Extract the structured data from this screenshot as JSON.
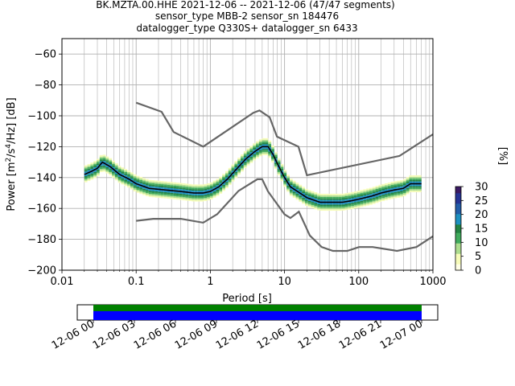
{
  "header": {
    "lines": [
      "BK.MZTA.00.HHE   2021-12-06 -- 2021-12-06  (47/47 segments)",
      "sensor_type MBB-2 sensor_sn 184476",
      "datalogger_type Q330S+ datalogger_sn 6433"
    ]
  },
  "chart_data": {
    "type": "heatmap",
    "xlabel": "Period [s]",
    "ylabel": "Power [m^2/s^4/Hz] [dB]",
    "x_scale": "log",
    "xlim": [
      0.01,
      1000
    ],
    "ylim": [
      -200,
      -50
    ],
    "x_ticks": [
      0.01,
      0.1,
      1,
      10,
      100,
      1000
    ],
    "x_tick_labels": [
      "0.01",
      "0.1",
      "1",
      "10",
      "100",
      "1000"
    ],
    "y_ticks": [
      -200,
      -180,
      -160,
      -140,
      -120,
      -100,
      -80,
      -60
    ],
    "y_tick_labels": [
      "−200",
      "−180",
      "−160",
      "−140",
      "−120",
      "−100",
      "−80",
      "−60"
    ],
    "grid": true,
    "colorbar": {
      "label": "[%]",
      "min": 0,
      "max": 30,
      "ticks": [
        0,
        5,
        10,
        15,
        20,
        25,
        30
      ],
      "colormap": [
        "#ffffe5",
        "#f7fcb9",
        "#addd8e",
        "#41ab5d",
        "#238443",
        "#1d91c0",
        "#225ea8",
        "#253494",
        "#3b1a63"
      ]
    },
    "noise_model_high": {
      "period": [
        0.1,
        0.22,
        0.32,
        0.8,
        3.8,
        4.6,
        6.3,
        7.9,
        15.4,
        20,
        354.8,
        1000
      ],
      "power": [
        -91.5,
        -97.4,
        -110.5,
        -120,
        -98,
        -96.5,
        -101,
        -113.5,
        -120,
        -138.5,
        -126,
        -112
      ]
    },
    "noise_model_low": {
      "period": [
        0.1,
        0.17,
        0.4,
        0.8,
        1.24,
        2.4,
        4.3,
        5,
        6,
        10,
        12,
        15.6,
        21.9,
        31.6,
        45,
        70,
        101,
        154,
        328,
        600,
        1000
      ],
      "power": [
        -168,
        -166.7,
        -166.7,
        -169.2,
        -163.7,
        -148.6,
        -141.1,
        -141.1,
        -149,
        -163.8,
        -166.2,
        -162.1,
        -177.5,
        -185,
        -187.5,
        -187.5,
        -185,
        -185,
        -187.5,
        -185,
        -178
      ]
    },
    "median_psd": {
      "period": [
        0.02,
        0.025,
        0.03,
        0.035,
        0.045,
        0.06,
        0.08,
        0.1,
        0.15,
        0.25,
        0.4,
        0.6,
        0.8,
        1,
        1.3,
        1.7,
        2.2,
        3,
        4,
        5,
        6,
        7,
        8,
        10,
        12,
        15,
        20,
        30,
        40,
        60,
        80,
        100,
        150,
        200,
        300,
        400,
        500,
        700
      ],
      "power": [
        -138,
        -136,
        -134,
        -130,
        -133,
        -138,
        -141,
        -144,
        -147,
        -148,
        -149,
        -150,
        -150,
        -149,
        -146,
        -141,
        -135,
        -128,
        -123,
        -120,
        -120,
        -125,
        -131,
        -140,
        -146,
        -149,
        -153,
        -156,
        -156,
        -156,
        -155,
        -154,
        -152,
        -150,
        -148,
        -147,
        -144,
        -144
      ]
    },
    "spread_db": 8
  }
}
